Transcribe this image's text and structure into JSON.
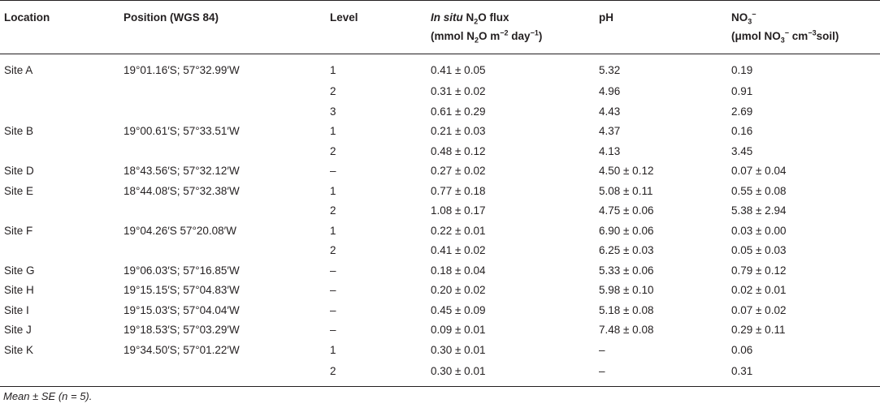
{
  "table": {
    "headers": {
      "location": "Location",
      "position": "Position (WGS 84)",
      "level": "Level",
      "flux_line1_italic": "In situ",
      "flux_line1_rest": "N",
      "flux_line1_sub": "2",
      "flux_line1_end": "O flux",
      "flux_line2_a": "(mmol N",
      "flux_line2_sub": "2",
      "flux_line2_b": "O m",
      "flux_line2_sup1": "−2",
      "flux_line2_c": " day",
      "flux_line2_sup2": "−1",
      "flux_line2_d": ")",
      "ph": "pH",
      "no3_line1": "NO",
      "no3_line1_sub": "3",
      "no3_line1_sup": "−",
      "no3_line2_a": "(μmol NO",
      "no3_line2_sub": "3",
      "no3_line2_sup": "−",
      "no3_line2_b": " cm",
      "no3_line2_sup2": "−3",
      "no3_line2_c": "soil)"
    },
    "rows": [
      {
        "location": "Site A",
        "position": "19°01.16′S; 57°32.99′W",
        "level": "1",
        "flux": "0.41 ± 0.05",
        "ph": "5.32",
        "no3": "0.19"
      },
      {
        "location": "",
        "position": "",
        "level": "2",
        "flux": "0.31 ± 0.02",
        "ph": "4.96",
        "no3": "0.91"
      },
      {
        "location": "",
        "position": "",
        "level": "3",
        "flux": "0.61 ± 0.29",
        "ph": "4.43",
        "no3": "2.69"
      },
      {
        "location": "Site B",
        "position": "19°00.61′S; 57°33.51′W",
        "level": "1",
        "flux": "0.21 ± 0.03",
        "ph": "4.37",
        "no3": "0.16"
      },
      {
        "location": "",
        "position": "",
        "level": "2",
        "flux": "0.48 ± 0.12",
        "ph": "4.13",
        "no3": "3.45"
      },
      {
        "location": "Site D",
        "position": "18°43.56′S; 57°32.12′W",
        "level": "–",
        "flux": "0.27 ± 0.02",
        "ph": "4.50 ± 0.12",
        "no3": "0.07 ± 0.04"
      },
      {
        "location": "Site E",
        "position": "18°44.08′S; 57°32.38′W",
        "level": "1",
        "flux": "0.77 ± 0.18",
        "ph": "5.08 ± 0.11",
        "no3": "0.55 ± 0.08"
      },
      {
        "location": "",
        "position": "",
        "level": "2",
        "flux": "1.08 ± 0.17",
        "ph": "4.75 ± 0.06",
        "no3": "5.38 ± 2.94"
      },
      {
        "location": "Site F",
        "position": "19°04.26′S 57°20.08′W",
        "level": "1",
        "flux": "0.22 ± 0.01",
        "ph": "6.90 ± 0.06",
        "no3": "0.03 ± 0.00"
      },
      {
        "location": "",
        "position": "",
        "level": "2",
        "flux": "0.41 ± 0.02",
        "ph": "6.25 ± 0.03",
        "no3": "0.05 ± 0.03"
      },
      {
        "location": "Site G",
        "position": "19°06.03′S; 57°16.85′W",
        "level": "–",
        "flux": "0.18 ± 0.04",
        "ph": "5.33 ± 0.06",
        "no3": "0.79 ± 0.12"
      },
      {
        "location": "Site H",
        "position": "19°15.15′S; 57°04.83′W",
        "level": "–",
        "flux": "0.20 ± 0.02",
        "ph": "5.98 ± 0.10",
        "no3": "0.02 ± 0.01"
      },
      {
        "location": "Site I",
        "position": "19°15.03′S; 57°04.04′W",
        "level": "–",
        "flux": "0.45 ± 0.09",
        "ph": "5.18 ± 0.08",
        "no3": "0.07 ± 0.02"
      },
      {
        "location": "Site J",
        "position": "19°18.53′S; 57°03.29′W",
        "level": "–",
        "flux": "0.09 ± 0.01",
        "ph": "7.48 ± 0.08",
        "no3": "0.29 ± 0.11"
      },
      {
        "location": "Site K",
        "position": "19°34.50′S; 57°01.22′W",
        "level": "1",
        "flux": "0.30 ± 0.01",
        "ph": "–",
        "no3": "0.06"
      },
      {
        "location": "",
        "position": "",
        "level": "2",
        "flux": "0.30 ± 0.01",
        "ph": "–",
        "no3": "0.31"
      }
    ]
  },
  "footnote": "Mean ± SE (n = 5)."
}
